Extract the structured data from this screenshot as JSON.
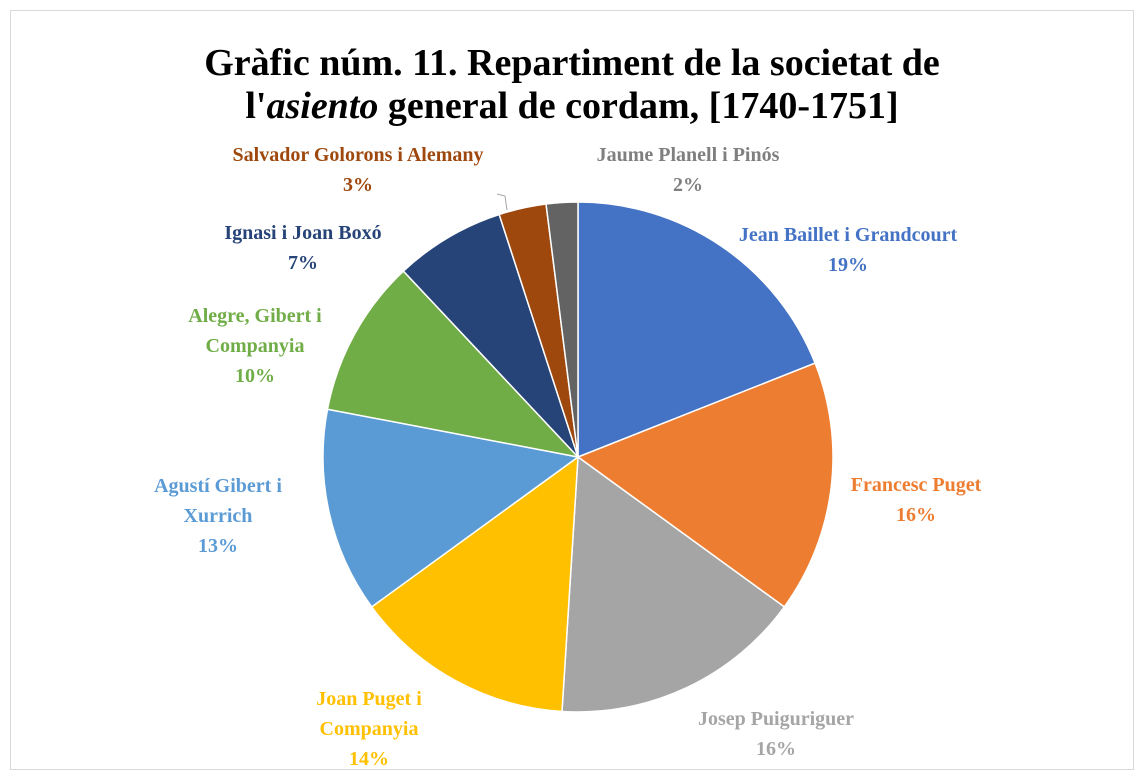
{
  "chart_data": {
    "type": "pie",
    "title": [
      [
        {
          "text": "Gràfic núm. 11. Repartiment de la societat de",
          "style": "normal"
        }
      ],
      [
        {
          "text": "l'",
          "style": "normal"
        },
        {
          "text": "asiento",
          "style": "italic"
        },
        {
          "text": " general de cordam, [1740-1751]",
          "style": "normal"
        }
      ]
    ],
    "categories": [
      "Jean Baillet i Grandcourt",
      "Francesc Puget",
      "Josep Puiguriguer",
      "Joan Puget i Companyia",
      "Agustí Gibert i Xurrich",
      "Alegre, Gibert i Companyia",
      "Ignasi i Joan Boxó",
      "Salvador Golorons i Alemany",
      "Jaume Planell i Pinós"
    ],
    "values": [
      19,
      16,
      16,
      14,
      13,
      10,
      7,
      3,
      2
    ],
    "value_labels": [
      "19%",
      "16%",
      "16%",
      "14%",
      "13%",
      "10%",
      "7%",
      "3%",
      "2%"
    ],
    "colors": [
      "#4472c4",
      "#ed7d31",
      "#a5a5a5",
      "#ffc000",
      "#5b9bd5",
      "#70ad47",
      "#264478",
      "#9e480e",
      "#636363"
    ]
  }
}
